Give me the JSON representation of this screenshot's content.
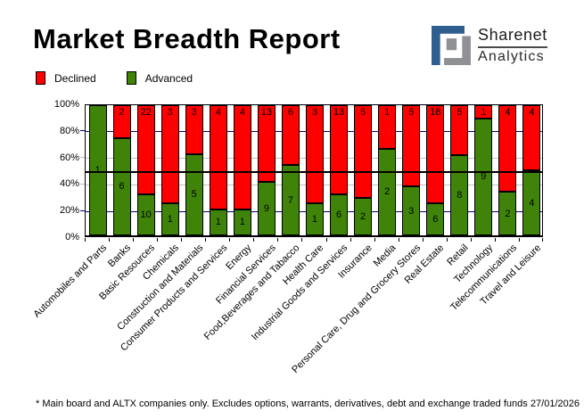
{
  "header": {
    "title": "Market Breadth Report"
  },
  "logo": {
    "name_top": "Sharenet",
    "name_bottom": "Analytics",
    "mark_blue": "#2f5f8e",
    "mark_gray": "#8f9194"
  },
  "legend": {
    "items": [
      {
        "label": "Declined",
        "color": "#ff0000"
      },
      {
        "label": "Advanced",
        "color": "#3f8409"
      }
    ]
  },
  "chart_data": {
    "type": "bar",
    "stacked": true,
    "normalized_to_percent": true,
    "title": "Market Breadth Report",
    "categories": [
      "Automobiles and Parts",
      "Banks",
      "Basic Resources",
      "Chemicals",
      "Construction and Materials",
      "Consumer Products and Services",
      "Energy",
      "Financial Services",
      "Food,Beverages and Tabacco",
      "Health Care",
      "Industrial Goods and Services",
      "Insurance",
      "Media",
      "Personal Care, Drug and Grocery Stores",
      "Real Estate",
      "Retail",
      "Technology",
      "Telecommunications",
      "Travel and Leisure"
    ],
    "series": [
      {
        "name": "Declined",
        "color": "#ff0000",
        "values": [
          0,
          2,
          22,
          3,
          3,
          4,
          4,
          13,
          6,
          3,
          13,
          5,
          1,
          5,
          18,
          5,
          1,
          4,
          4
        ]
      },
      {
        "name": "Advanced",
        "color": "#3f8409",
        "values": [
          1,
          6,
          10,
          1,
          5,
          1,
          1,
          9,
          7,
          1,
          6,
          2,
          2,
          3,
          6,
          8,
          9,
          2,
          4
        ]
      }
    ],
    "ylabel": "",
    "xlabel": "",
    "ylim": [
      0,
      100
    ],
    "y_tick_labels": [
      "0%",
      "20%",
      "40%",
      "60%",
      "80%",
      "100%"
    ],
    "y_tick_values": [
      0,
      20,
      40,
      60,
      80,
      100
    ],
    "gridlines": [
      {
        "value": 20,
        "color": "#000080"
      },
      {
        "value": 40,
        "color": "#c0c0c0"
      },
      {
        "value": 60,
        "color": "#c0c0c0"
      },
      {
        "value": 80,
        "color": "#000080"
      }
    ],
    "midline": {
      "value": 50,
      "color": "#000000"
    },
    "legend_position": "top-left",
    "bar_label_style": "segment counts printed on bars"
  },
  "footer": {
    "note": "* Main board and ALTX companies only. Excludes options, warrants, derivatives, debt and exchange traded funds",
    "date": "27/01/2026"
  }
}
